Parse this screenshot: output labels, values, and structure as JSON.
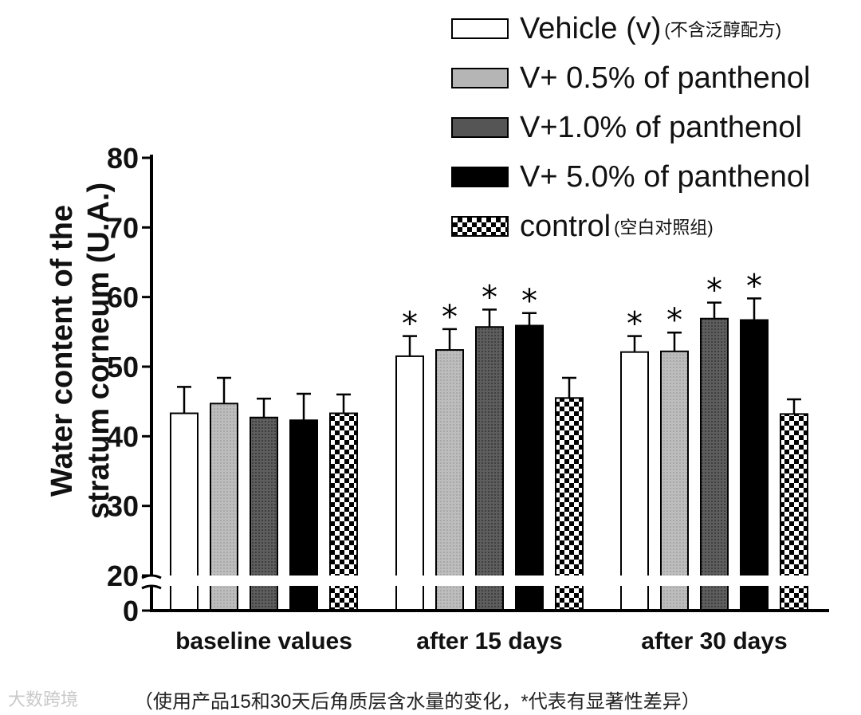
{
  "legend": [
    {
      "label": "Vehicle (v)",
      "note": "(不含泛醇配方)",
      "pattern": "white"
    },
    {
      "label": "V+ 0.5% of panthenol",
      "note": "",
      "pattern": "light-gray"
    },
    {
      "label": "V+1.0% of panthenol",
      "note": "",
      "pattern": "dark-gray"
    },
    {
      "label": "V+ 5.0% of panthenol",
      "note": "",
      "pattern": "black"
    },
    {
      "label": "control",
      "note": "(空白对照组)",
      "pattern": "checker"
    }
  ],
  "ylabel_line1": "Water content of the",
  "ylabel_line2": "stratum corneum (U.A.)",
  "watermark": "大数跨境",
  "caption": "（使用产品15和30天后角质层含水量的变化，*代表有显著性差异）",
  "chart_data": {
    "type": "bar",
    "title": "",
    "xlabel": "",
    "ylabel": "Water content of the stratum corneum (U.A.)",
    "categories": [
      "baseline values",
      "after 15 days",
      "after 30 days"
    ],
    "axis_break": [
      0,
      20
    ],
    "ylim": [
      0,
      80
    ],
    "yticks": [
      0,
      20,
      30,
      40,
      50,
      60,
      70,
      80
    ],
    "significance_marker": "*",
    "series": [
      {
        "name": "Vehicle (v)",
        "values": [
          43.3,
          51.5,
          52.1
        ],
        "errors": [
          3.8,
          2.9,
          2.3
        ],
        "significant": [
          false,
          true,
          true
        ]
      },
      {
        "name": "V+ 0.5% of panthenol",
        "values": [
          44.7,
          52.4,
          52.2
        ],
        "errors": [
          3.7,
          3.0,
          2.7
        ],
        "significant": [
          false,
          true,
          true
        ]
      },
      {
        "name": "V+1.0% of panthenol",
        "values": [
          42.7,
          55.7,
          56.9
        ],
        "errors": [
          2.7,
          2.5,
          2.3
        ],
        "significant": [
          false,
          true,
          true
        ]
      },
      {
        "name": "V+ 5.0% of panthenol",
        "values": [
          42.3,
          55.9,
          56.7
        ],
        "errors": [
          3.8,
          1.8,
          3.1
        ],
        "significant": [
          false,
          true,
          true
        ]
      },
      {
        "name": "control",
        "values": [
          43.3,
          45.5,
          43.2
        ],
        "errors": [
          2.7,
          2.9,
          2.1
        ],
        "significant": [
          false,
          false,
          false
        ]
      }
    ]
  }
}
